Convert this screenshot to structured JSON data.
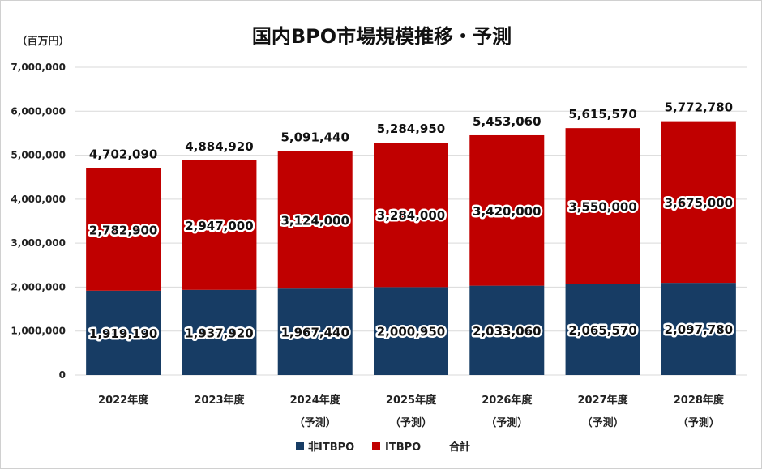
{
  "chart_data": {
    "type": "bar",
    "stacked": true,
    "title": "国内BPO市場規模推移・予測",
    "ylabel": "（百万円）",
    "ylim": [
      0,
      7000000
    ],
    "yticks": [
      0,
      1000000,
      2000000,
      3000000,
      4000000,
      5000000,
      6000000,
      7000000
    ],
    "ytick_labels": [
      "0",
      "1,000,000",
      "2,000,000",
      "3,000,000",
      "4,000,000",
      "5,000,000",
      "6,000,000",
      "7,000,000"
    ],
    "grid": true,
    "legend_position": "bottom",
    "categories": [
      "2022年度",
      "2023年度",
      "2024年度",
      "2025年度",
      "2026年度",
      "2027年度",
      "2028年度"
    ],
    "category_sublabels": [
      "",
      "",
      "（予測）",
      "（予測）",
      "（予測）",
      "（予測）",
      "（予測）"
    ],
    "series": [
      {
        "name": "非ITBPO",
        "color": "#173c64",
        "values": [
          1919190,
          1937920,
          1967440,
          2000950,
          2033060,
          2065570,
          2097780
        ]
      },
      {
        "name": "ITBPO",
        "color": "#c00000",
        "values": [
          2782900,
          2947000,
          3124000,
          3284000,
          3420000,
          3550000,
          3675000
        ]
      }
    ],
    "totals": {
      "name": "合計",
      "values": [
        4702090,
        4884920,
        5091440,
        5284950,
        5453060,
        5615570,
        5772780
      ]
    }
  }
}
